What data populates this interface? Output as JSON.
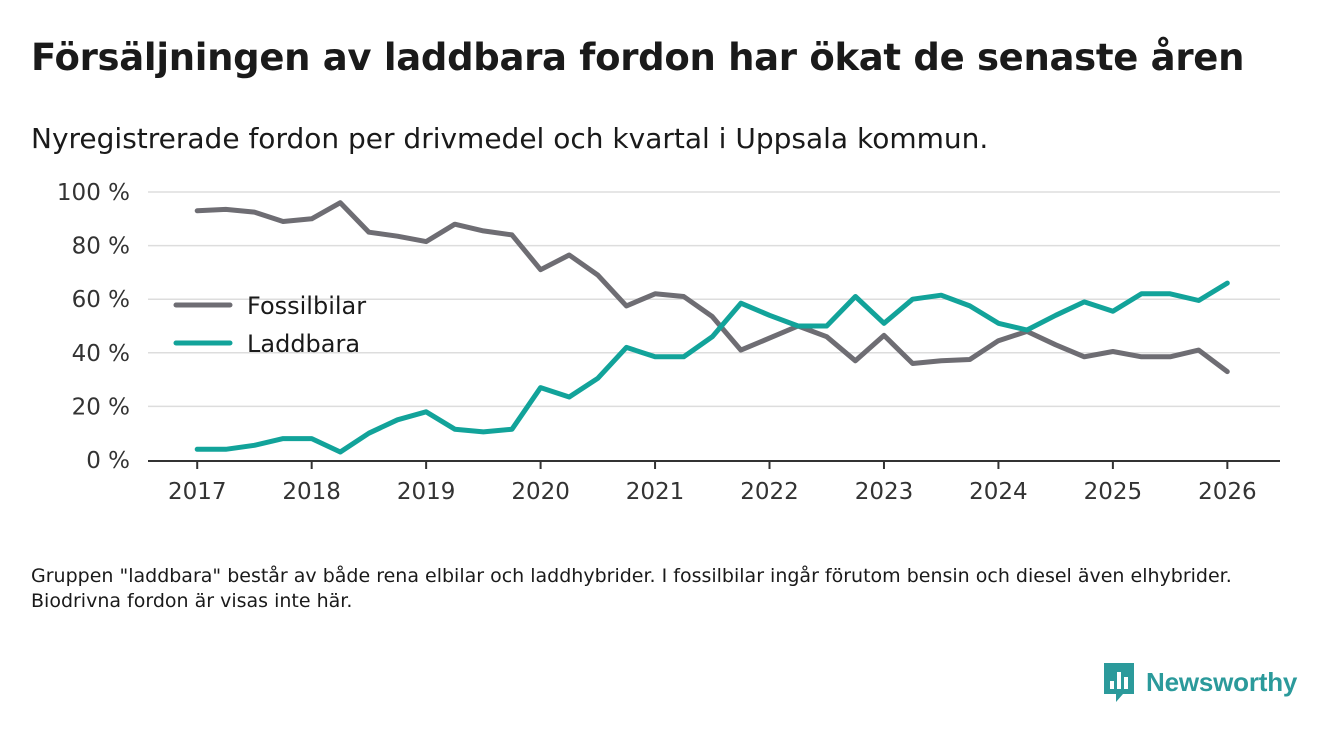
{
  "title": "Försäljningen av laddbara fordon har ökat de senaste åren",
  "subtitle": "Nyregistrerade fordon per drivmedel och kvartal i Uppsala kommun.",
  "note": "Gruppen \"laddbara\" består av både rena elbilar och laddhybrider. I fossilbilar ingår förutom bensin och diesel även elhybrider. Biodrivna fordon är visas inte här.",
  "brand": {
    "name": "Newsworthy",
    "icon": "newsworthy-logo-icon"
  },
  "colors": {
    "fossil": "#6e6d73",
    "laddbara": "#12a39a",
    "grid": "#dddddd",
    "axis": "#333333",
    "brand": "#2b9a9b"
  },
  "chart_data": {
    "type": "line",
    "title": "Försäljningen av laddbara fordon har ökat de senaste åren",
    "xlabel": "",
    "ylabel": "",
    "x": [
      2017.0,
      2017.25,
      2017.5,
      2017.75,
      2018.0,
      2018.25,
      2018.5,
      2018.75,
      2019.0,
      2019.25,
      2019.5,
      2019.75,
      2020.0,
      2020.25,
      2020.5,
      2020.75,
      2021.0,
      2021.25,
      2021.5,
      2021.75,
      2022.0,
      2022.25,
      2022.5,
      2022.75,
      2023.0,
      2023.25,
      2023.5,
      2023.75,
      2024.0,
      2024.25,
      2024.5,
      2024.75,
      2025.0,
      2025.25,
      2025.5,
      2025.75,
      2026.0
    ],
    "series": [
      {
        "name": "Fossilbilar",
        "color": "#6e6d73",
        "values": [
          93,
          93.5,
          92.5,
          89,
          90,
          96,
          85,
          83.5,
          81.5,
          88,
          85.5,
          84,
          71,
          76.5,
          69,
          57.5,
          62,
          61,
          53.5,
          41,
          45.5,
          50,
          46,
          37,
          46.5,
          36,
          37,
          37.5,
          44.5,
          48,
          43,
          38.5,
          40.5,
          38.5,
          38.5,
          41,
          33
        ]
      },
      {
        "name": "Laddbara",
        "color": "#12a39a",
        "values": [
          4,
          4,
          5.5,
          8,
          8,
          3,
          10,
          15,
          18,
          11.5,
          10.5,
          11.5,
          27,
          23.5,
          30.5,
          42,
          38.5,
          38.5,
          46,
          58.5,
          54,
          50,
          50,
          61,
          51,
          60,
          61.5,
          57.5,
          51,
          48.5,
          54,
          59,
          55.5,
          62,
          62,
          59.5,
          66
        ]
      }
    ],
    "xticks": [
      2017,
      2018,
      2019,
      2020,
      2021,
      2022,
      2023,
      2024,
      2025,
      2026
    ],
    "xtick_labels": [
      "2017",
      "2018",
      "2019",
      "2020",
      "2021",
      "2022",
      "2023",
      "2024",
      "2025",
      "2026"
    ],
    "yticks": [
      0,
      20,
      40,
      60,
      80,
      100
    ],
    "ytick_labels": [
      "0 %",
      "20 %",
      "40 %",
      "60 %",
      "80 %",
      "100 %"
    ],
    "xlim": [
      2016.57,
      2026.46
    ],
    "ylim": [
      0,
      100
    ],
    "grid": true,
    "legend": "left"
  }
}
